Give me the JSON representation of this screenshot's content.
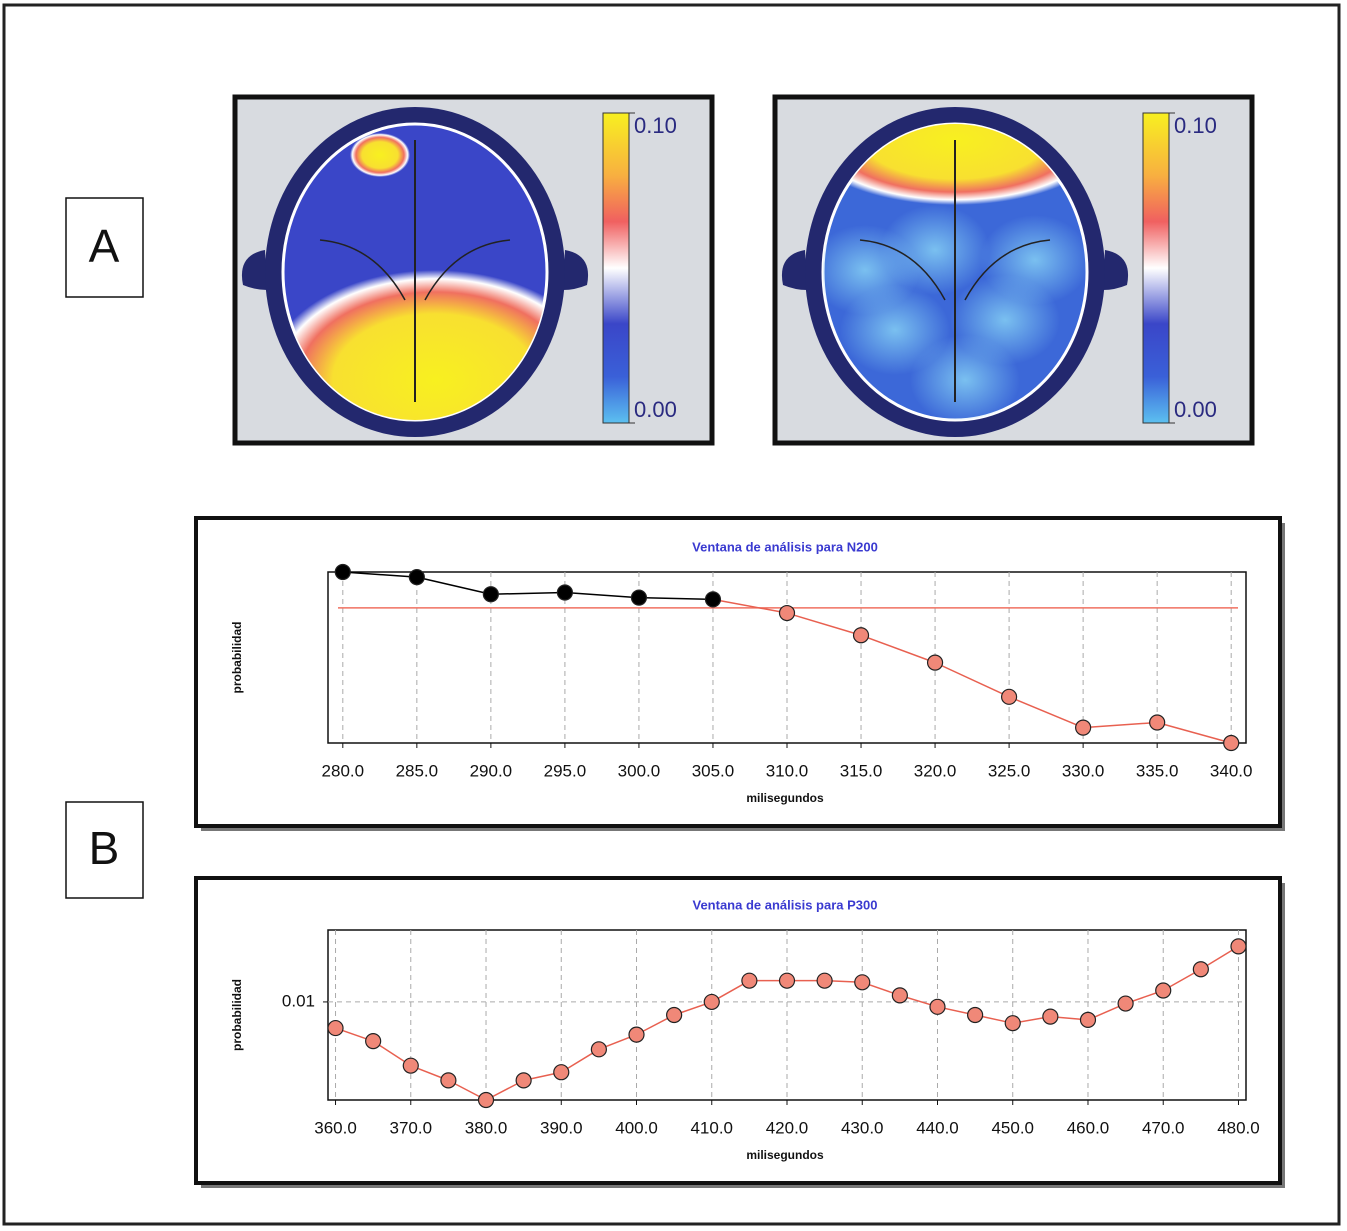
{
  "panel_labels": [
    "A",
    "B"
  ],
  "colorbars": [
    {
      "range": [
        0,
        0.1
      ],
      "ticks": [
        {
          "value": 0.1,
          "label": "0.10"
        },
        {
          "value": 0,
          "label": "0.00"
        }
      ]
    },
    {
      "range": [
        0,
        0.1
      ],
      "ticks": [
        {
          "value": 0.1,
          "label": "0.10"
        },
        {
          "value": 0,
          "label": "0.00"
        }
      ]
    }
  ],
  "chart_data": [
    {
      "type": "line",
      "title": "Ventana de análisis para N200",
      "x_label": "milisegundos",
      "y_label": "probabilidad",
      "x": [
        280,
        285,
        290,
        295,
        300,
        305,
        310,
        315,
        320,
        325,
        330,
        335,
        340
      ],
      "values": [
        1.0,
        0.97,
        0.87,
        0.88,
        0.85,
        0.84,
        0.76,
        0.63,
        0.47,
        0.27,
        0.09,
        0.12,
        0.0
      ],
      "color": "#f08878",
      "color_above": "#000000",
      "threshold": 0.79,
      "threshold_color": "#f07060",
      "xlim": [
        279,
        341
      ],
      "ylim": [
        0,
        1
      ],
      "xticks": [
        {
          "value": 280,
          "label": "280.0"
        },
        {
          "value": 285,
          "label": "285.0"
        },
        {
          "value": 290,
          "label": "290.0"
        },
        {
          "value": 295,
          "label": "295.0"
        },
        {
          "value": 300,
          "label": "300.0"
        },
        {
          "value": 305,
          "label": "305.0"
        },
        {
          "value": 310,
          "label": "310.0"
        },
        {
          "value": 315,
          "label": "315.0"
        },
        {
          "value": 320,
          "label": "320.0"
        },
        {
          "value": 325,
          "label": "325.0"
        },
        {
          "value": 330,
          "label": "330.0"
        },
        {
          "value": 335,
          "label": "335.0"
        },
        {
          "value": 340,
          "label": "340.0"
        }
      ],
      "grid": true
    },
    {
      "type": "line",
      "title": "Ventana de análisis para P300",
      "x_label": "milisegundos",
      "y_label": "probabilidad",
      "x": [
        360,
        365,
        370,
        375,
        380,
        385,
        390,
        395,
        400,
        405,
        410,
        415,
        420,
        425,
        430,
        435,
        440,
        445,
        450,
        455,
        460,
        465,
        470,
        475,
        480
      ],
      "values": [
        0.0084,
        0.0076,
        0.0061,
        0.0052,
        0.004,
        0.0052,
        0.0057,
        0.0071,
        0.008,
        0.0092,
        0.01,
        0.0113,
        0.0113,
        0.0113,
        0.0112,
        0.0104,
        0.0097,
        0.0092,
        0.0087,
        0.0091,
        0.0089,
        0.0099,
        0.0107,
        0.012,
        0.0134
      ],
      "color": "#f08878",
      "xlim": [
        359,
        481
      ],
      "ylim": [
        0.004,
        0.0144
      ],
      "yticks": [
        0.01
      ],
      "xticks": [
        {
          "value": 360,
          "label": "360.0"
        },
        {
          "value": 370,
          "label": "370.0"
        },
        {
          "value": 380,
          "label": "380.0"
        },
        {
          "value": 390,
          "label": "390.0"
        },
        {
          "value": 400,
          "label": "400.0"
        },
        {
          "value": 410,
          "label": "410.0"
        },
        {
          "value": 420,
          "label": "420.0"
        },
        {
          "value": 430,
          "label": "430.0"
        },
        {
          "value": 440,
          "label": "440.0"
        },
        {
          "value": 450,
          "label": "450.0"
        },
        {
          "value": 460,
          "label": "460.0"
        },
        {
          "value": 470,
          "label": "470.0"
        },
        {
          "value": 480,
          "label": "480.0"
        }
      ],
      "grid": true
    }
  ]
}
